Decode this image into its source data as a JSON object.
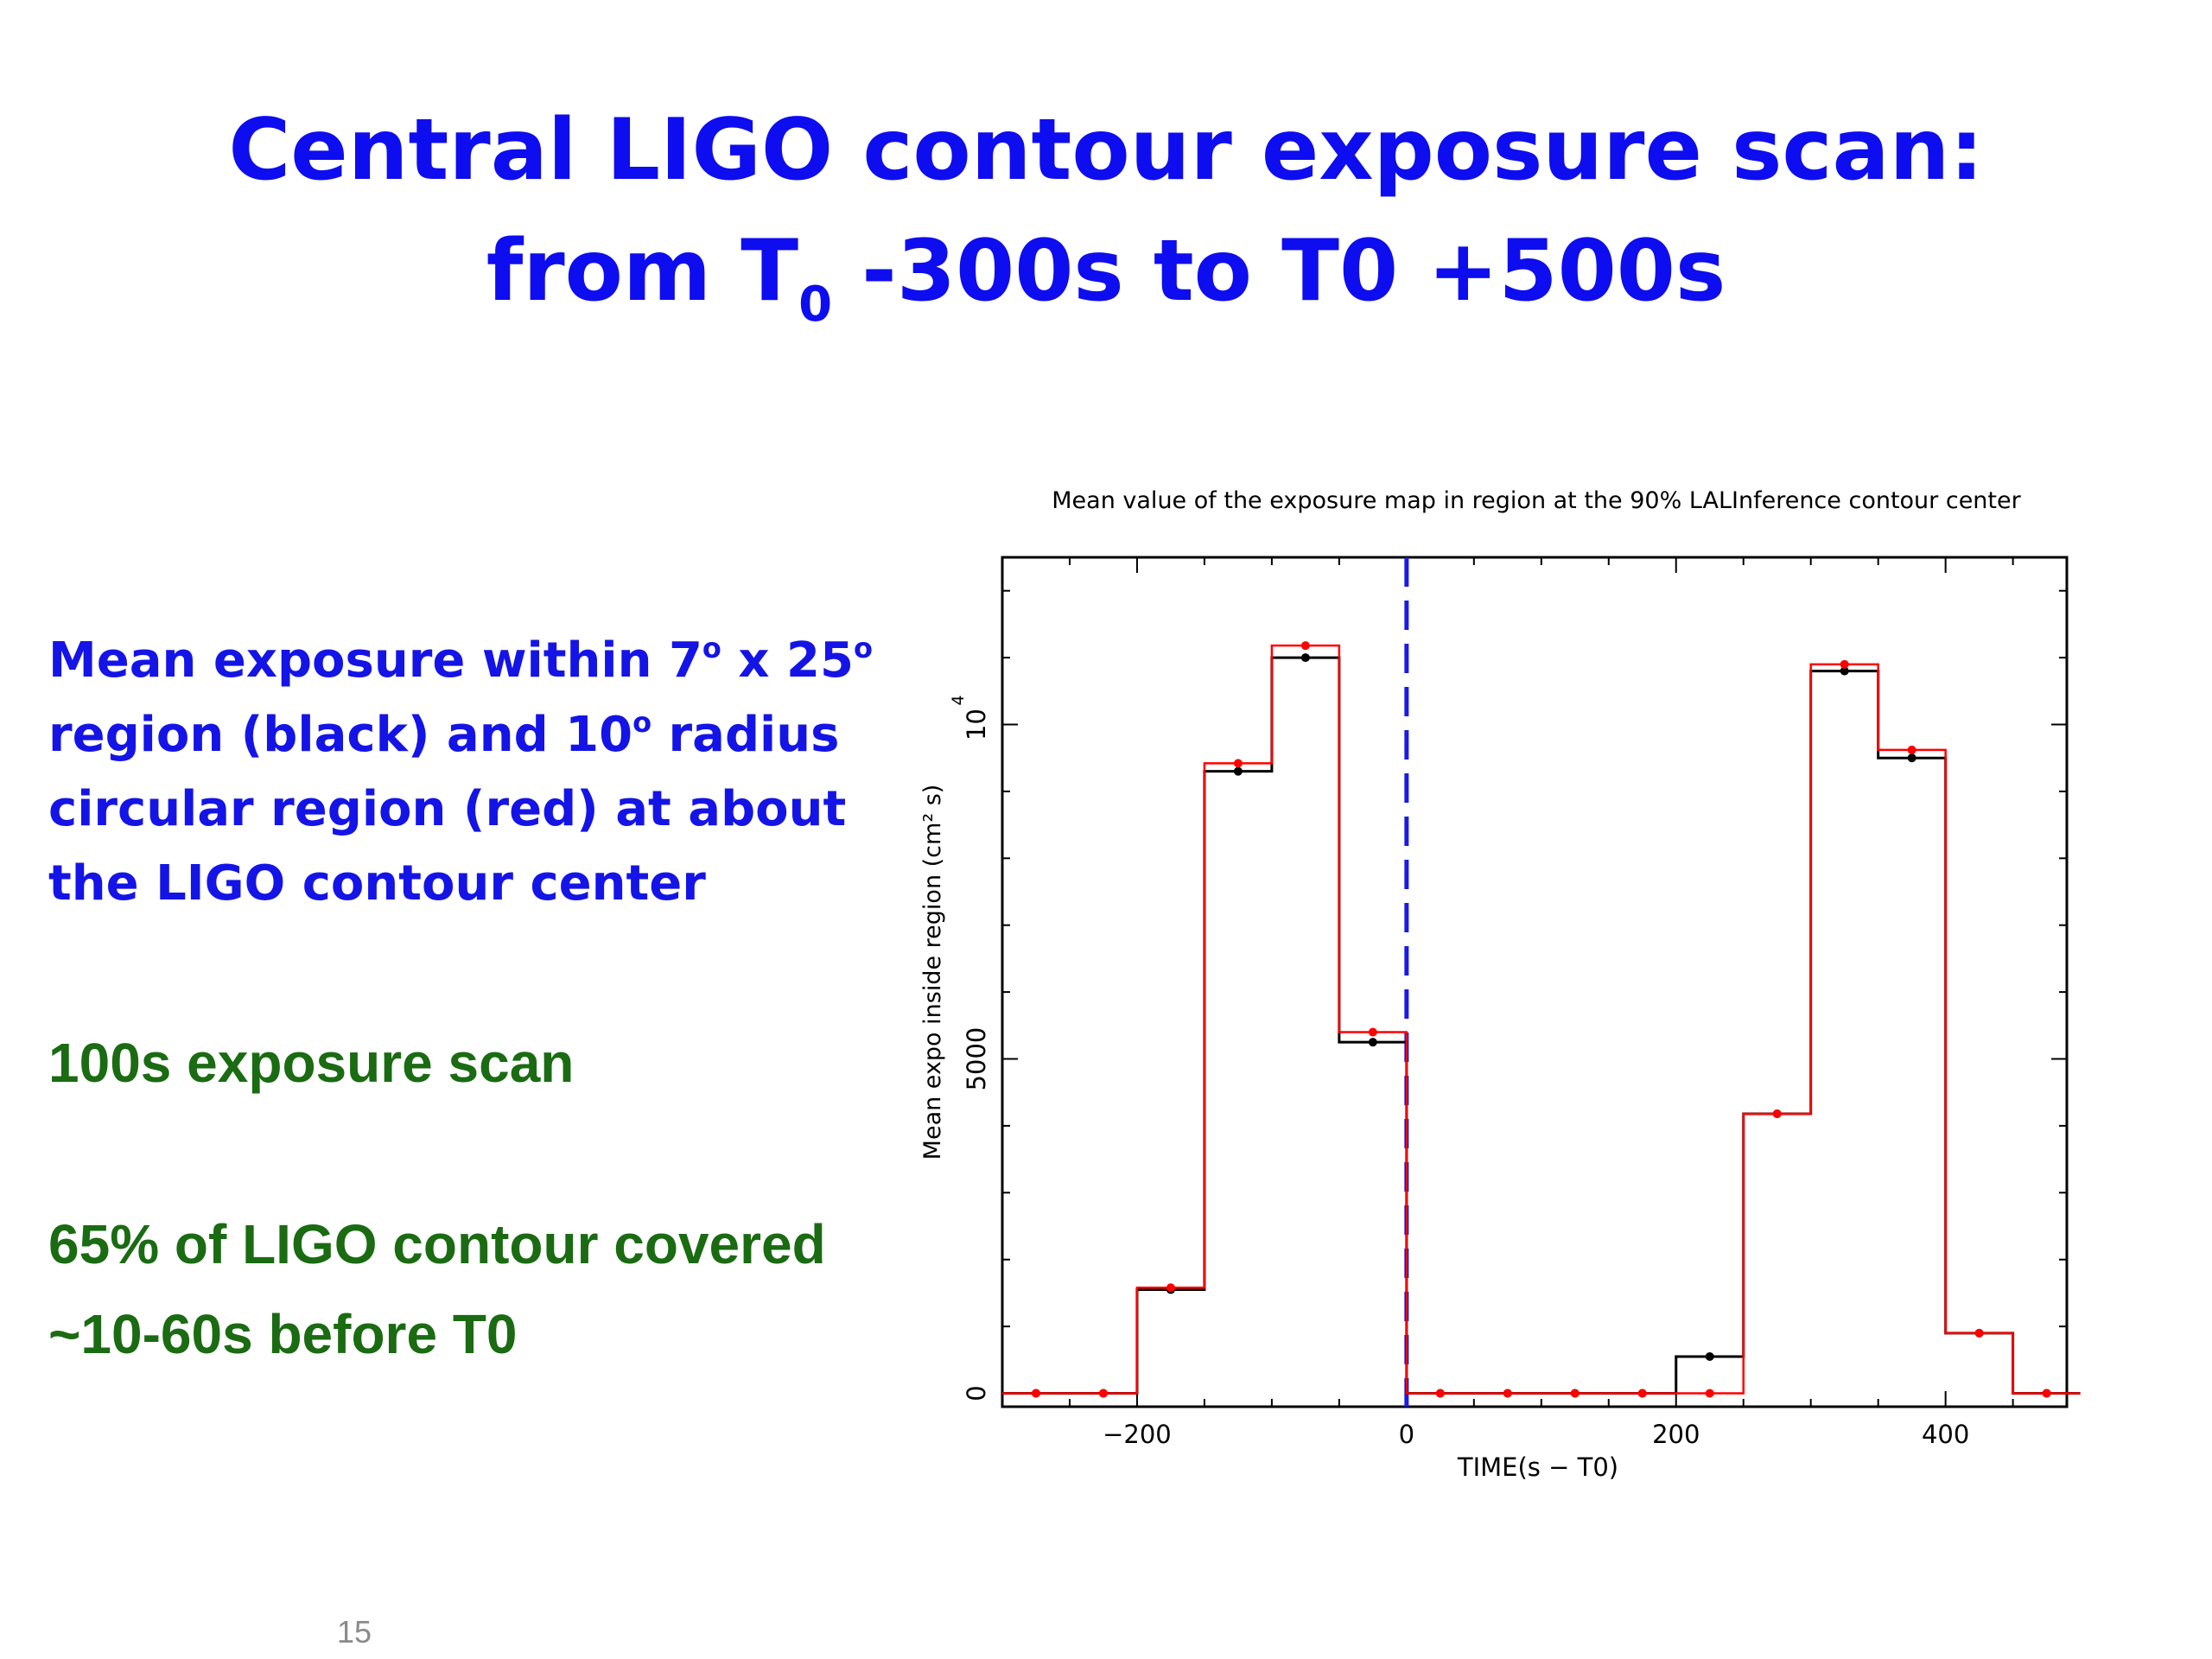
{
  "slide": {
    "title_line1": "Central LIGO contour exposure scan:",
    "title_line2_a": "from T",
    "title_line2_sub": "0",
    "title_line2_b": " -300s to T0 +500s",
    "desc_p1": "Mean exposure within 7",
    "desc_deg1": "o",
    "desc_p2": " x 25",
    "desc_deg2": "o",
    "desc_p3": " region (black) and 10",
    "desc_deg3": "o",
    "desc_p4": "  radius circular region (red) at about the LIGO contour center",
    "scan_text": "100s exposure scan",
    "coverage_text": "65% of LIGO contour covered ~10-60s before T0",
    "page_number": "15"
  },
  "chart_data": {
    "type": "line",
    "title": "Mean value of the exposure map in region at the 90% LALInference contour center",
    "xlabel": "TIME(s − T0)",
    "ylabel": "Mean expo inside region (cm² s)",
    "xlim": [
      -300,
      490
    ],
    "ylim": [
      -200,
      12500
    ],
    "x_ticks": [
      {
        "value": -200,
        "label": "−200"
      },
      {
        "value": 0,
        "label": "0"
      },
      {
        "value": 200,
        "label": "200"
      },
      {
        "value": 400,
        "label": "400"
      }
    ],
    "y_ticks": [
      {
        "value": 0,
        "label": "0"
      },
      {
        "value": 5000,
        "label": "5000"
      },
      {
        "value": 10000,
        "label": "10",
        "exponent": "4"
      }
    ],
    "vline": {
      "x": 0,
      "style": "dashed",
      "color": "#1a1ae6"
    },
    "series": [
      {
        "color": "#000000",
        "x": [
          -275,
          -225,
          -175,
          -125,
          -75,
          -25,
          25,
          75,
          125,
          175,
          225,
          275,
          325,
          375,
          425,
          475
        ],
        "values": [
          0,
          0,
          1550,
          9300,
          11000,
          5250,
          0,
          0,
          0,
          0,
          550,
          4180,
          10800,
          9500,
          900,
          0
        ]
      },
      {
        "color": "#ff0000",
        "x": [
          -275,
          -225,
          -175,
          -125,
          -75,
          -25,
          25,
          75,
          125,
          175,
          225,
          275,
          325,
          375,
          425,
          475
        ],
        "values": [
          0,
          0,
          1580,
          9420,
          11180,
          5400,
          0,
          0,
          0,
          0,
          0,
          4180,
          10900,
          9620,
          900,
          0
        ]
      }
    ],
    "grid": false,
    "legend": "none"
  }
}
